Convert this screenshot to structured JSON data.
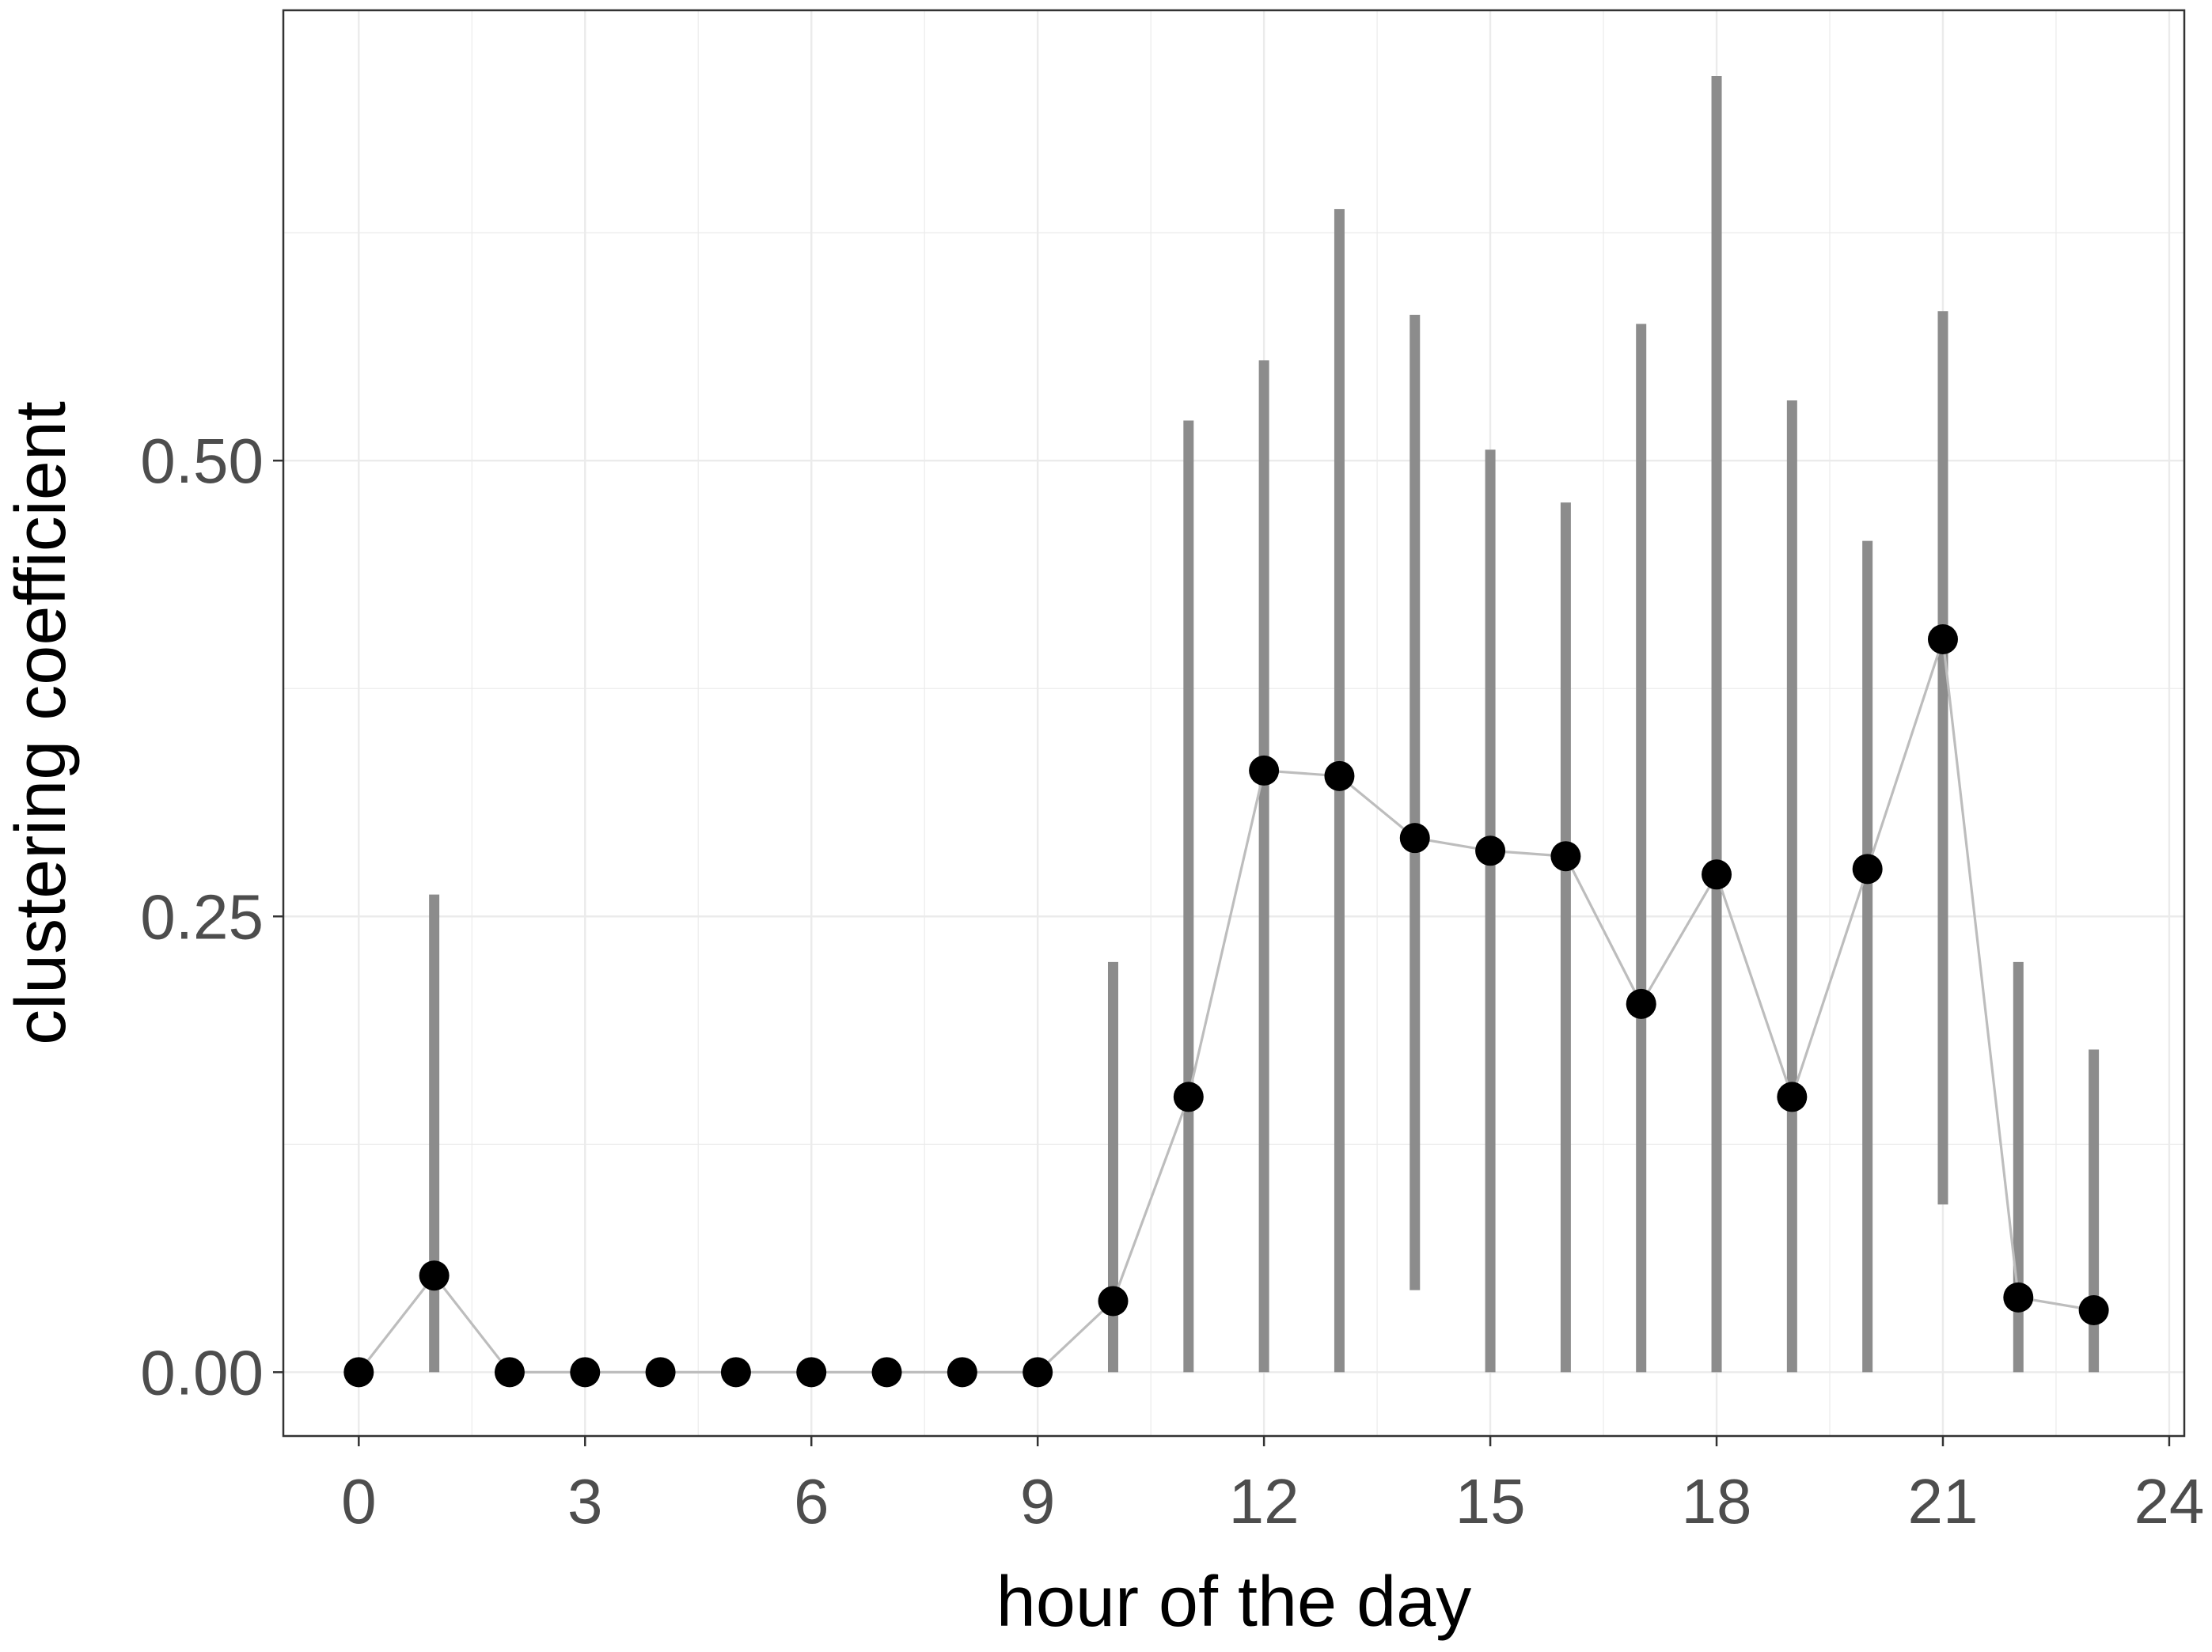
{
  "chart_data": {
    "type": "scatter",
    "title": "",
    "xlabel": "hour of the day",
    "ylabel": "clustering coefficient",
    "xlim": [
      -1,
      24.2
    ],
    "ylim": [
      -0.035,
      0.747
    ],
    "x_ticks": [
      0,
      3,
      6,
      9,
      12,
      15,
      18,
      21,
      24
    ],
    "x_tick_labels": [
      "0",
      "3",
      "6",
      "9",
      "12",
      "15",
      "18",
      "21",
      "24"
    ],
    "y_ticks": [
      0.0,
      0.25,
      0.5
    ],
    "y_tick_labels": [
      "0.00",
      "0.25",
      "0.50"
    ],
    "grid": true,
    "legend": "none",
    "series": [
      {
        "points": [
          {
            "x": 0,
            "y": 0.0,
            "low": null,
            "high": null
          },
          {
            "x": 1,
            "y": 0.053,
            "low": 0.0,
            "high": 0.262
          },
          {
            "x": 2,
            "y": 0.0,
            "low": null,
            "high": null
          },
          {
            "x": 3,
            "y": 0.0,
            "low": null,
            "high": null
          },
          {
            "x": 4,
            "y": 0.0,
            "low": null,
            "high": null
          },
          {
            "x": 5,
            "y": 0.0,
            "low": null,
            "high": null
          },
          {
            "x": 6,
            "y": 0.0,
            "low": null,
            "high": null
          },
          {
            "x": 7,
            "y": 0.0,
            "low": null,
            "high": null
          },
          {
            "x": 8,
            "y": 0.0,
            "low": null,
            "high": null
          },
          {
            "x": 9,
            "y": 0.0,
            "low": null,
            "high": null
          },
          {
            "x": 10,
            "y": 0.039,
            "low": 0.0,
            "high": 0.225
          },
          {
            "x": 11,
            "y": 0.151,
            "low": 0.0,
            "high": 0.522
          },
          {
            "x": 12,
            "y": 0.33,
            "low": 0.0,
            "high": 0.555
          },
          {
            "x": 13,
            "y": 0.327,
            "low": 0.0,
            "high": 0.638
          },
          {
            "x": 14,
            "y": 0.293,
            "low": 0.045,
            "high": 0.58
          },
          {
            "x": 15,
            "y": 0.286,
            "low": 0.0,
            "high": 0.506
          },
          {
            "x": 16,
            "y": 0.283,
            "low": 0.0,
            "high": 0.477
          },
          {
            "x": 17,
            "y": 0.202,
            "low": 0.0,
            "high": 0.575
          },
          {
            "x": 18,
            "y": 0.273,
            "low": 0.0,
            "high": 0.711
          },
          {
            "x": 19,
            "y": 0.151,
            "low": 0.0,
            "high": 0.533
          },
          {
            "x": 20,
            "y": 0.276,
            "low": 0.0,
            "high": 0.456
          },
          {
            "x": 21,
            "y": 0.402,
            "low": 0.092,
            "high": 0.582
          },
          {
            "x": 22,
            "y": 0.041,
            "low": 0.0,
            "high": 0.225
          },
          {
            "x": 23,
            "y": 0.034,
            "low": 0.0,
            "high": 0.177
          }
        ]
      }
    ],
    "colors": {
      "points": "#000000",
      "line": "#bdbdbd",
      "error_bars": "#8c8c8c",
      "grid": "#ebebeb",
      "panel_border": "#333333",
      "tick_text": "#4d4d4d"
    }
  }
}
